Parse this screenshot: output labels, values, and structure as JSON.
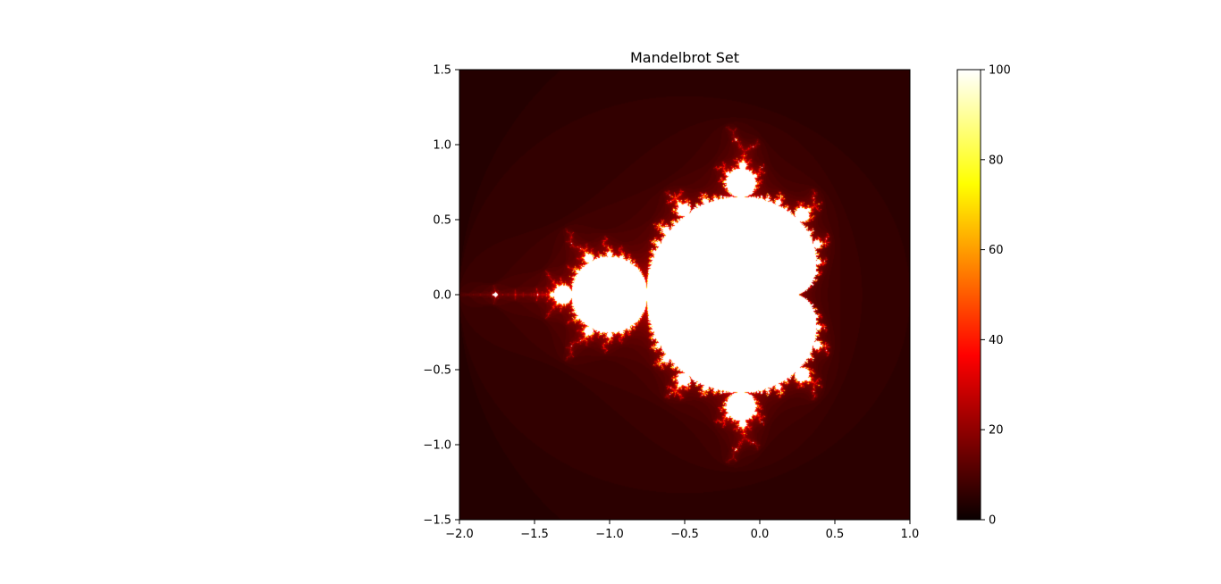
{
  "chart_data": {
    "type": "heatmap",
    "title": "Mandelbrot Set",
    "xlabel": "",
    "ylabel": "",
    "xlim": [
      -2.0,
      1.0
    ],
    "ylim": [
      -1.5,
      1.5
    ],
    "x_ticks": [
      "−2.0",
      "−1.5",
      "−1.0",
      "−0.5",
      "0.0",
      "0.5",
      "1.0"
    ],
    "x_tick_values": [
      -2.0,
      -1.5,
      -1.0,
      -0.5,
      0.0,
      0.5,
      1.0
    ],
    "y_ticks": [
      "−1.5",
      "−1.0",
      "−0.5",
      "0.0",
      "0.5",
      "1.0",
      "1.5"
    ],
    "y_tick_values": [
      -1.5,
      -1.0,
      -0.5,
      0.0,
      0.5,
      1.0,
      1.5
    ],
    "colormap": "hot",
    "max_iterations": 100,
    "grid": false,
    "colorbar": {
      "range": [
        0,
        100
      ],
      "ticks": [
        "0",
        "20",
        "40",
        "60",
        "80",
        "100"
      ],
      "tick_values": [
        0,
        20,
        40,
        60,
        80,
        100
      ],
      "placement": "right"
    }
  }
}
